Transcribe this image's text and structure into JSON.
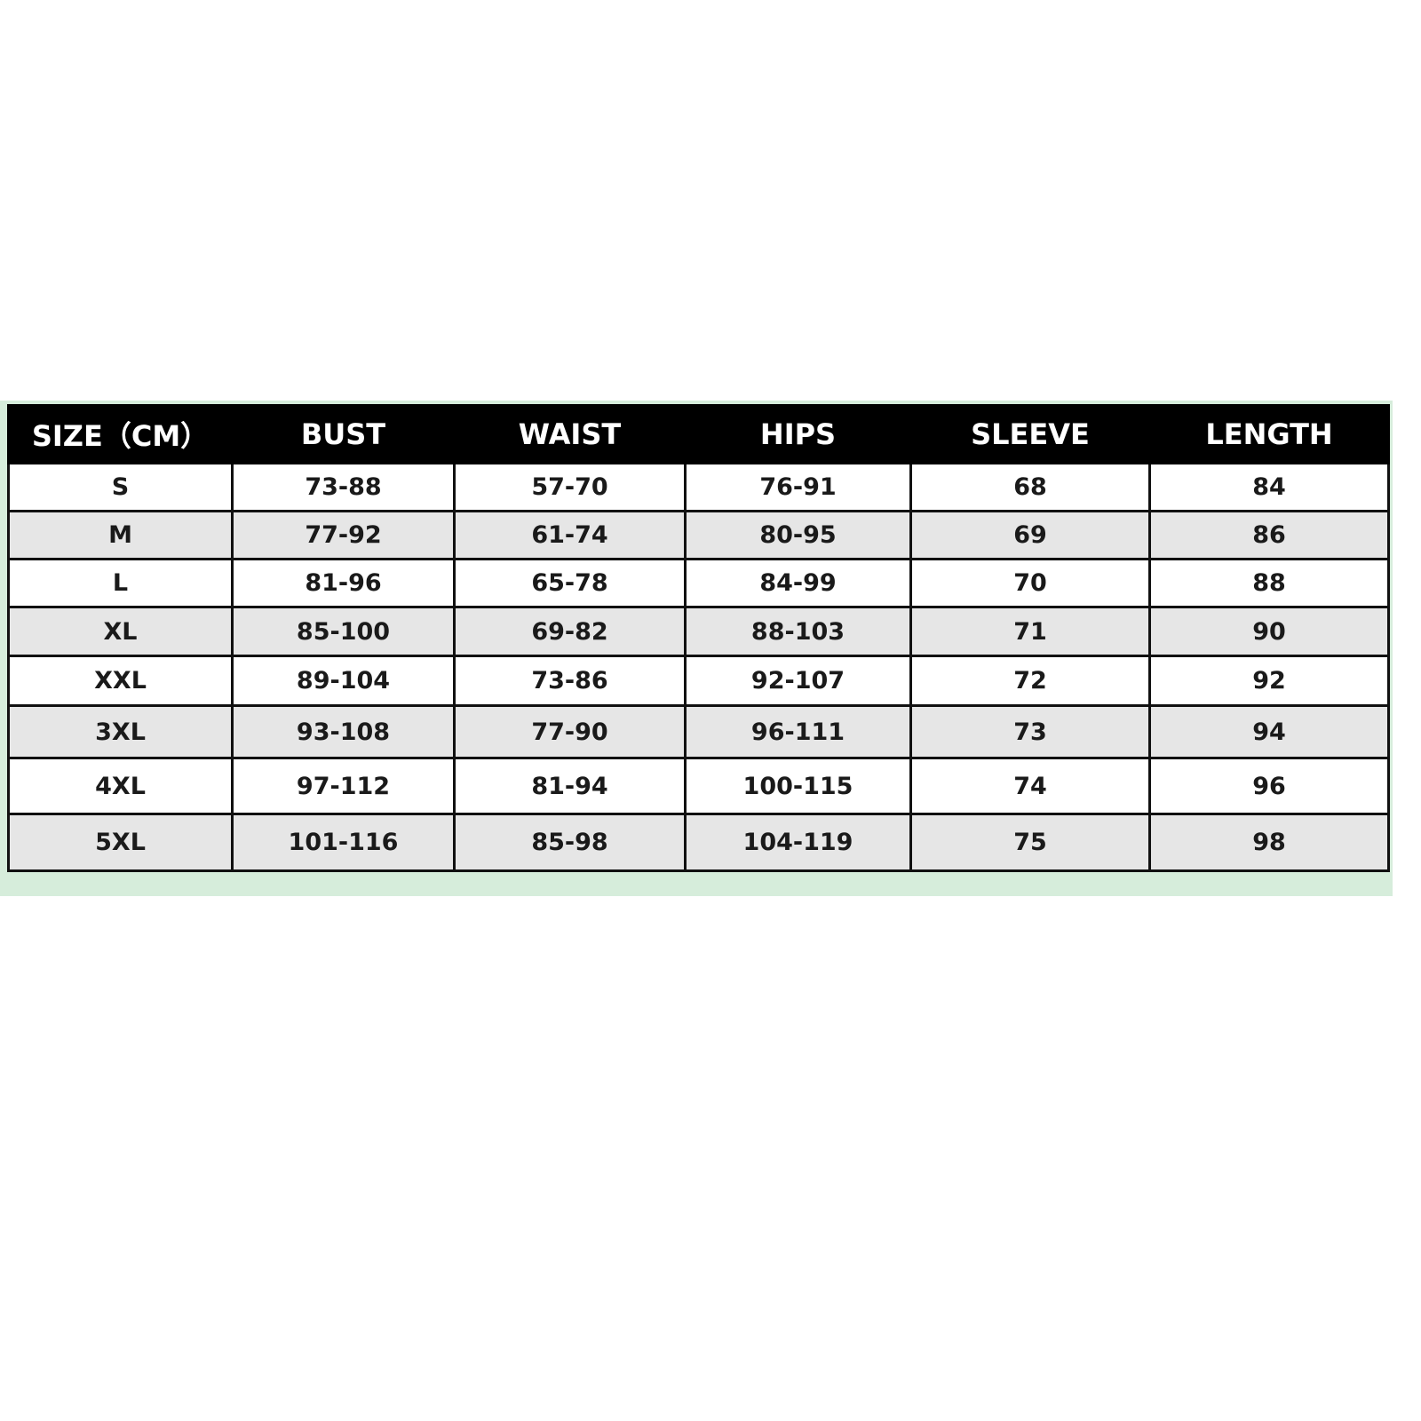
{
  "size_chart": {
    "headers": [
      "SIZE（CM）",
      "BUST",
      "WAIST",
      "HIPS",
      "SLEEVE",
      "LENGTH"
    ],
    "rows": [
      [
        "S",
        "73-88",
        "57-70",
        "76-91",
        "68",
        "84"
      ],
      [
        "M",
        "77-92",
        "61-74",
        "80-95",
        "69",
        "86"
      ],
      [
        "L",
        "81-96",
        "65-78",
        "84-99",
        "70",
        "88"
      ],
      [
        "XL",
        "85-100",
        "69-82",
        "88-103",
        "71",
        "90"
      ],
      [
        "XXL",
        "89-104",
        "73-86",
        "92-107",
        "72",
        "92"
      ],
      [
        "3XL",
        "93-108",
        "77-90",
        "96-111",
        "73",
        "94"
      ],
      [
        "4XL",
        "97-112",
        "81-94",
        "100-115",
        "74",
        "96"
      ],
      [
        "5XL",
        "101-116",
        "85-98",
        "104-119",
        "75",
        "98"
      ]
    ]
  },
  "colors": {
    "header_bg": "#000000",
    "alt_row_bg": "#e6e6e6",
    "frame": "#d6eddb"
  }
}
